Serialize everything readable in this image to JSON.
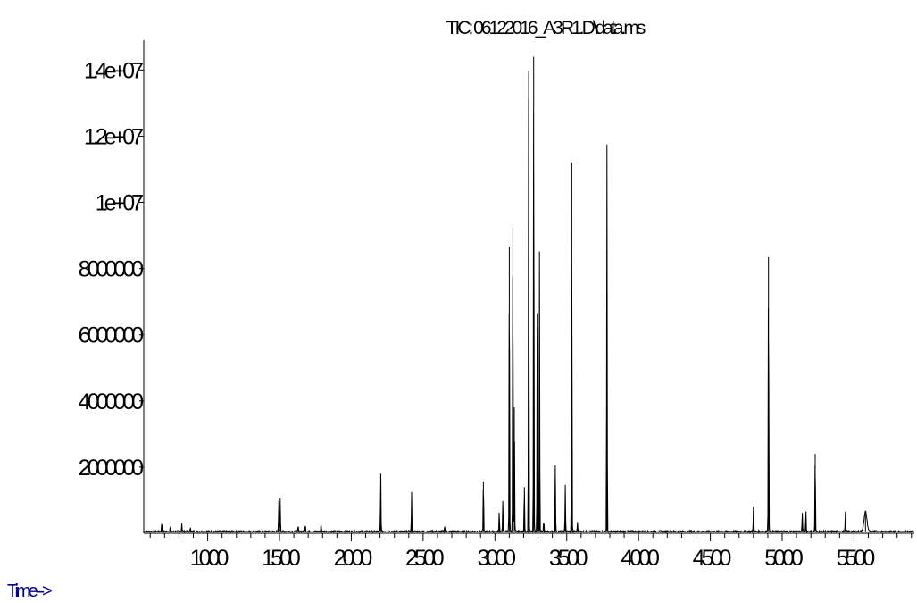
{
  "chart_data": {
    "type": "line",
    "title": "TIC: 06122016_A3R1.D\\data.ms",
    "xlabel": "Time-->",
    "ylabel": "",
    "xlim": [
      555,
      5920
    ],
    "ylim": [
      0,
      14900000
    ],
    "x_ticks": [
      1000,
      1500,
      2000,
      2500,
      3000,
      3500,
      4000,
      4500,
      5000,
      5500
    ],
    "x_tick_labels": [
      "1000",
      "1500",
      "2000",
      "2500",
      "3000",
      "3500",
      "4000",
      "4500",
      "5000",
      "5500"
    ],
    "y_ticks": [
      2000000,
      4000000,
      6000000,
      8000000,
      10000000,
      12000000,
      14000000
    ],
    "y_tick_labels": [
      "2000000",
      "4000000",
      "6000000",
      "8000000",
      "1e+07",
      "1.2e+07",
      "1.4e+07"
    ],
    "grid": false,
    "series": [
      {
        "baseline": 60000,
        "peaks": [
          {
            "x": 680,
            "y": 280000
          },
          {
            "x": 740,
            "y": 150000
          },
          {
            "x": 820,
            "y": 260000
          },
          {
            "x": 880,
            "y": 120000
          },
          {
            "x": 1495,
            "y": 960000
          },
          {
            "x": 1505,
            "y": 1000000
          },
          {
            "x": 1630,
            "y": 160000
          },
          {
            "x": 1680,
            "y": 220000
          },
          {
            "x": 1790,
            "y": 230000
          },
          {
            "x": 2205,
            "y": 1800000
          },
          {
            "x": 2420,
            "y": 1170000
          },
          {
            "x": 2650,
            "y": 170000
          },
          {
            "x": 2920,
            "y": 1560000
          },
          {
            "x": 3030,
            "y": 600000
          },
          {
            "x": 3055,
            "y": 950000
          },
          {
            "x": 3100,
            "y": 8650000
          },
          {
            "x": 3125,
            "y": 9250000
          },
          {
            "x": 3135,
            "y": 3800000
          },
          {
            "x": 3205,
            "y": 1400000
          },
          {
            "x": 3235,
            "y": 13950000
          },
          {
            "x": 3270,
            "y": 14400000
          },
          {
            "x": 3295,
            "y": 6650000
          },
          {
            "x": 3310,
            "y": 8450000
          },
          {
            "x": 3340,
            "y": 300000
          },
          {
            "x": 3420,
            "y": 2050000
          },
          {
            "x": 3490,
            "y": 1420000
          },
          {
            "x": 3535,
            "y": 11200000
          },
          {
            "x": 3575,
            "y": 300000
          },
          {
            "x": 3780,
            "y": 11750000
          },
          {
            "x": 4800,
            "y": 780000
          },
          {
            "x": 4905,
            "y": 8350000
          },
          {
            "x": 5140,
            "y": 600000
          },
          {
            "x": 5165,
            "y": 650000
          },
          {
            "x": 5230,
            "y": 2400000
          },
          {
            "x": 5440,
            "y": 580000
          },
          {
            "x": 5580,
            "y": 600000
          }
        ]
      }
    ]
  }
}
